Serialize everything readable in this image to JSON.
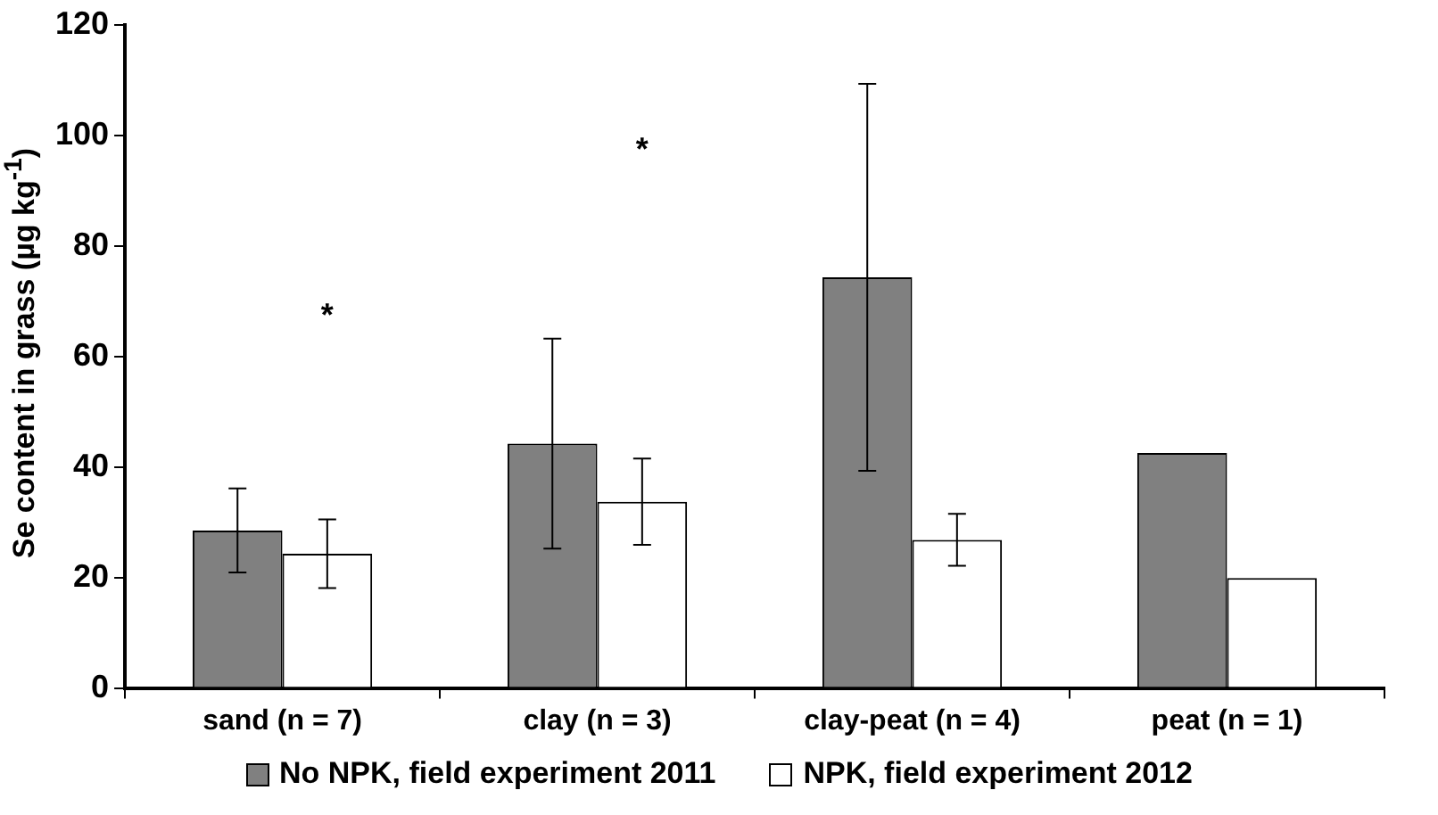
{
  "chart_data": {
    "type": "bar",
    "ylabel": "Se content in grass (µg kg$^{-1}$)",
    "categories": [
      "sand (n = 7)",
      "clay (n = 3)",
      "clay-peat (n = 4)",
      "peat (n = 1)"
    ],
    "series": [
      {
        "name": "No NPK, field experiment 2011",
        "color": "#808080",
        "values": [
          28.5,
          44.2,
          74.3,
          42.5
        ],
        "errors": [
          7.6,
          19,
          35,
          null
        ]
      },
      {
        "name": "NPK, field experiment 2012",
        "color": "#ffffff",
        "values": [
          24.3,
          33.7,
          26.8,
          19.9
        ],
        "errors": [
          6.2,
          7.8,
          4.7,
          null
        ]
      }
    ],
    "ylim": [
      0,
      120
    ],
    "yticks": [
      0,
      20,
      40,
      60,
      80,
      100,
      120
    ],
    "grid": false,
    "legend": "bottom",
    "annotations": [
      "*",
      "*"
    ]
  }
}
